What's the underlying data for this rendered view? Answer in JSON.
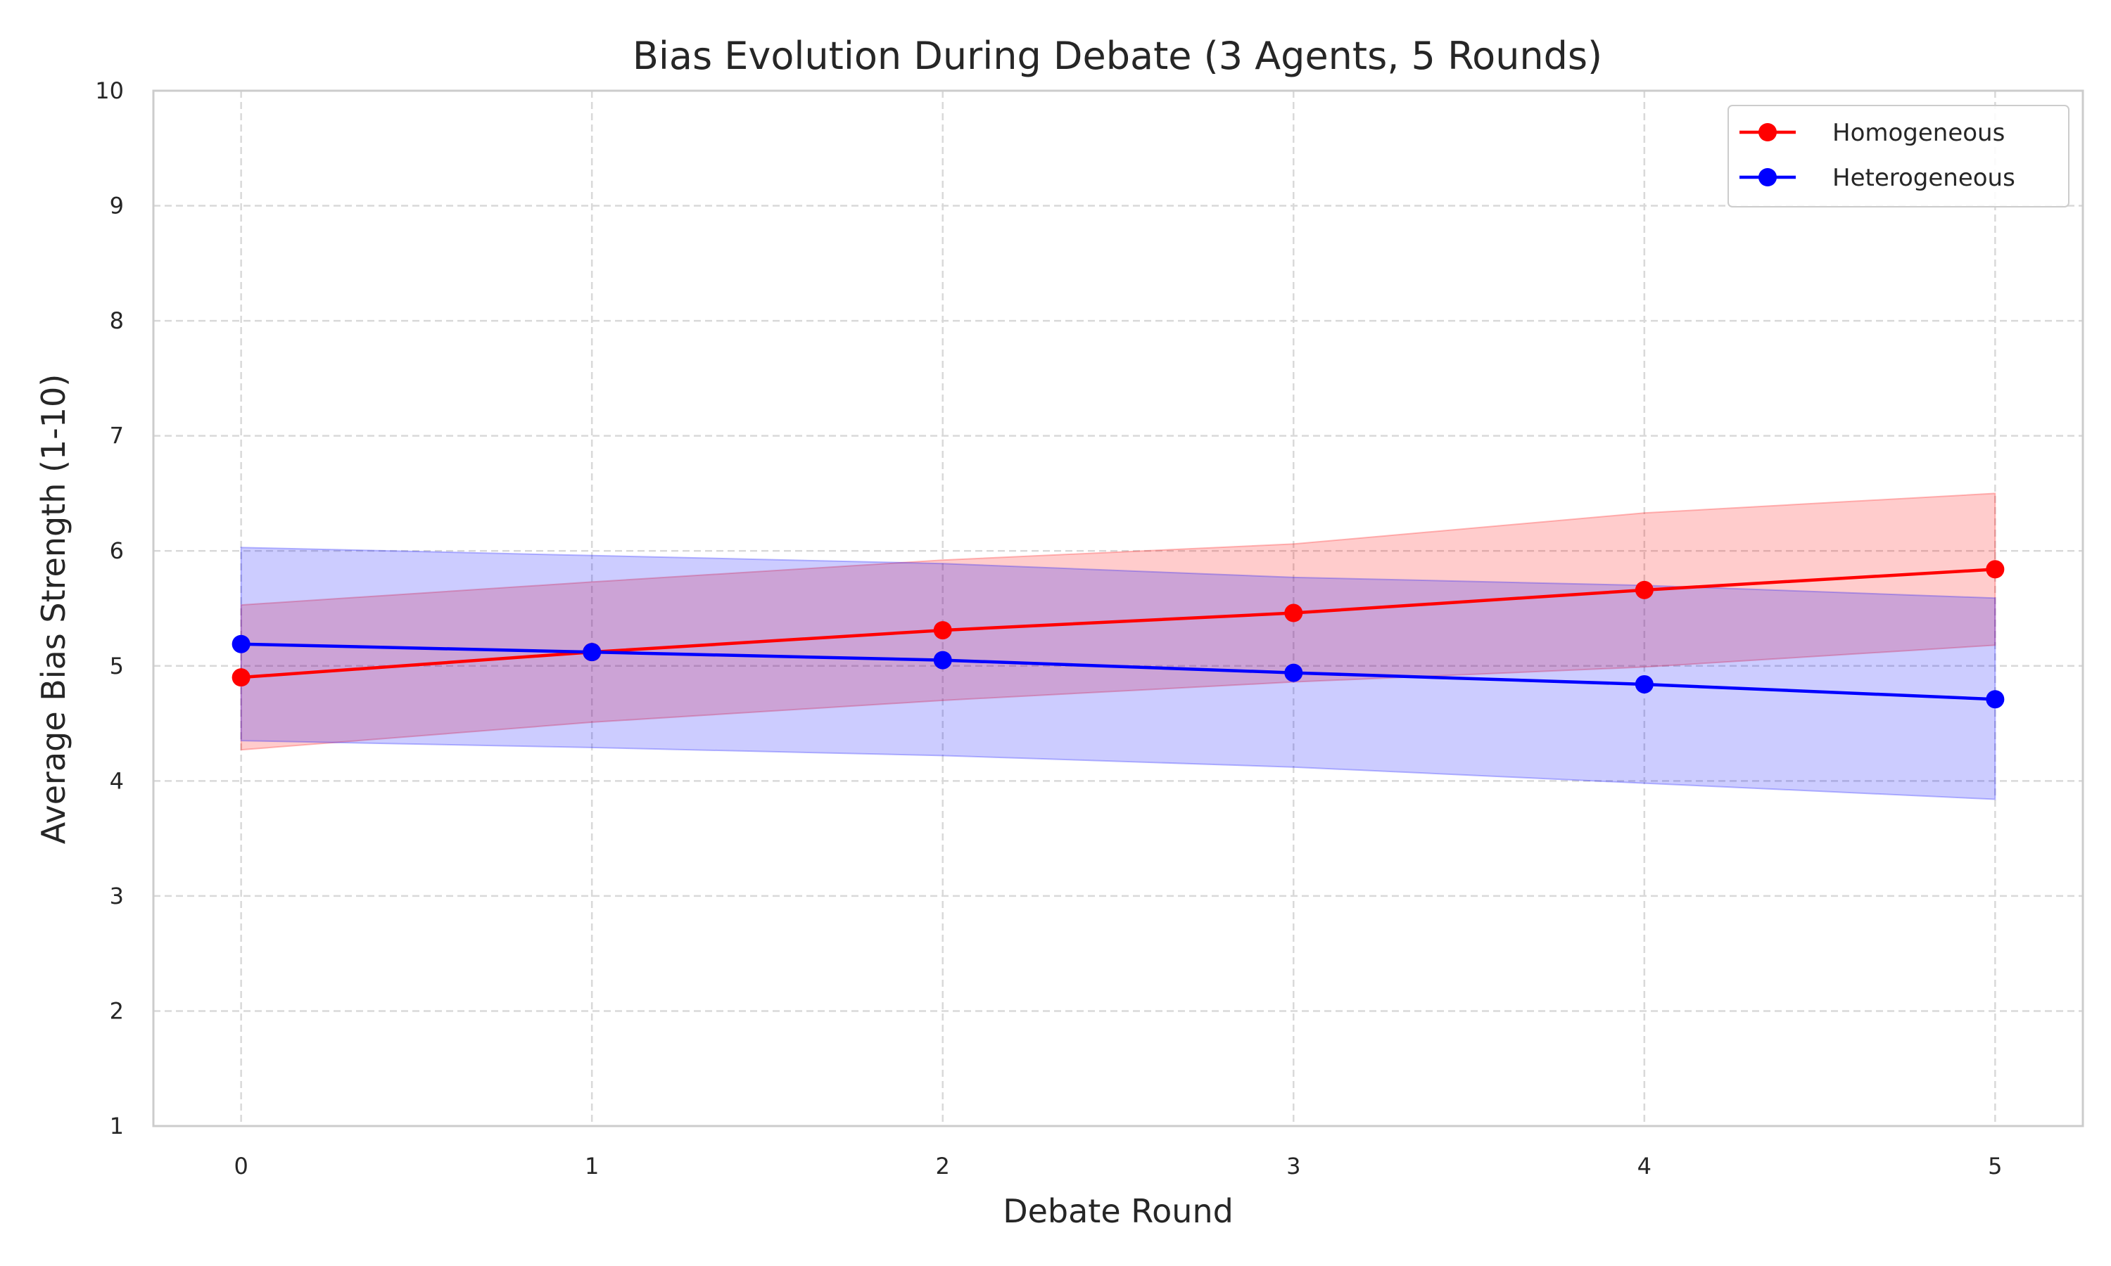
{
  "chart_data": {
    "type": "line",
    "title": "Bias Evolution During Debate (3 Agents, 5 Rounds)",
    "xlabel": "Debate Round",
    "ylabel": "Average Bias Strength (1-10)",
    "x": [
      0,
      1,
      2,
      3,
      4,
      5
    ],
    "xlim": [
      -0.25,
      5.25
    ],
    "ylim": [
      1,
      10
    ],
    "xticks": [
      "0",
      "1",
      "2",
      "3",
      "4",
      "5"
    ],
    "yticks": [
      "1",
      "2",
      "3",
      "4",
      "5",
      "6",
      "7",
      "8",
      "9",
      "10"
    ],
    "grid": true,
    "legend_position": "top-right",
    "series": [
      {
        "name": "Homogeneous",
        "color": "#ff0000",
        "values": [
          4.9,
          5.12,
          5.31,
          5.46,
          5.66,
          5.84
        ],
        "band_upper": [
          5.53,
          5.73,
          5.92,
          6.06,
          6.33,
          6.5
        ],
        "band_lower": [
          4.27,
          4.51,
          4.7,
          4.86,
          4.99,
          5.18
        ]
      },
      {
        "name": "Heterogeneous",
        "color": "#0000ff",
        "values": [
          5.19,
          5.12,
          5.05,
          4.94,
          4.84,
          4.71
        ],
        "band_upper": [
          6.03,
          5.96,
          5.89,
          5.77,
          5.7,
          5.59
        ],
        "band_lower": [
          4.35,
          4.29,
          4.22,
          4.12,
          3.98,
          3.84
        ]
      }
    ]
  }
}
